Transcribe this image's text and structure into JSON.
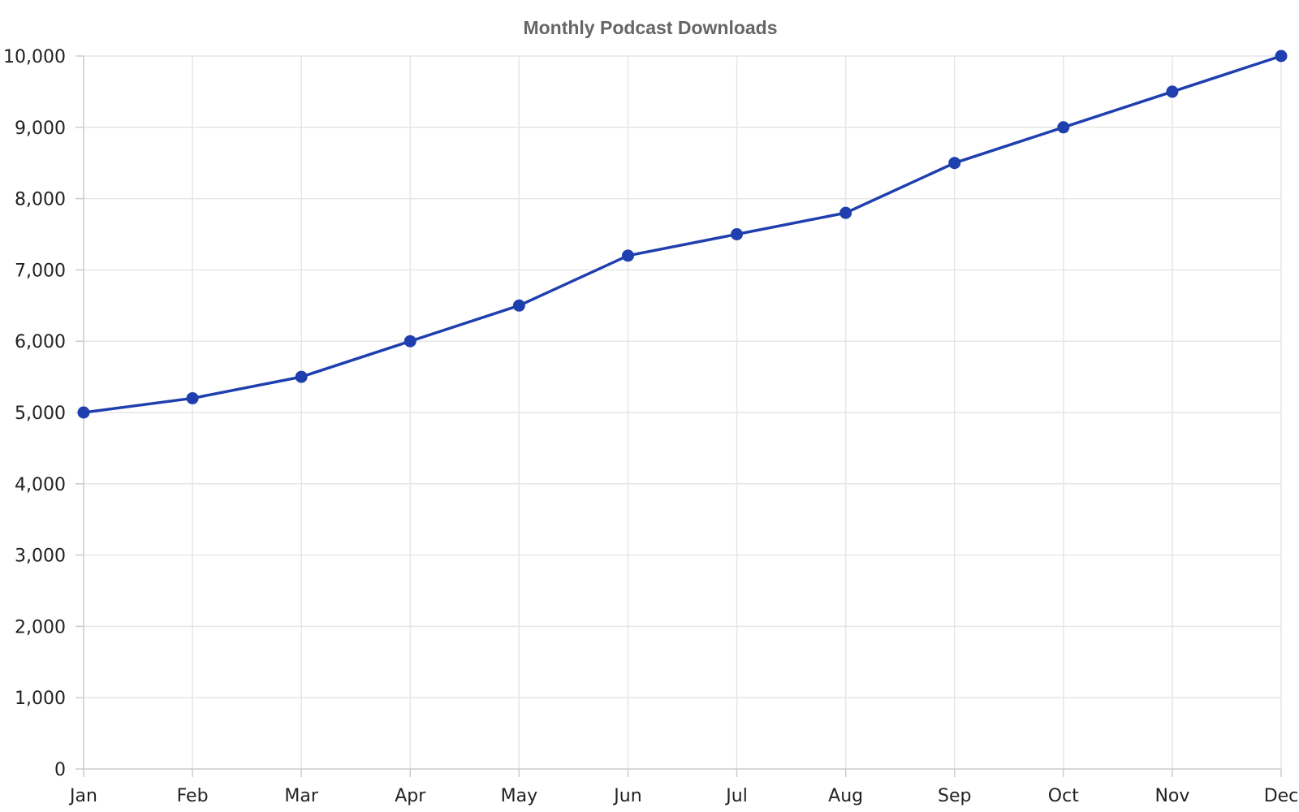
{
  "chart_data": {
    "type": "line",
    "title": "Monthly Podcast Downloads",
    "xlabel": "",
    "ylabel": "",
    "categories": [
      "Jan",
      "Feb",
      "Mar",
      "Apr",
      "May",
      "Jun",
      "Jul",
      "Aug",
      "Sep",
      "Oct",
      "Nov",
      "Dec"
    ],
    "series": [
      {
        "values": [
          5000,
          5200,
          5500,
          6000,
          6500,
          7200,
          7500,
          7800,
          8500,
          9000,
          9500,
          10000
        ]
      }
    ],
    "ylim": [
      0,
      10000
    ],
    "yticks": [
      0,
      1000,
      2000,
      3000,
      4000,
      5000,
      6000,
      7000,
      8000,
      9000,
      10000
    ],
    "ytick_labels": [
      "0",
      "1,000",
      "2,000",
      "3,000",
      "4,000",
      "5,000",
      "6,000",
      "7,000",
      "8,000",
      "9,000",
      "10,000"
    ],
    "grid": true,
    "legend": "none",
    "markers": true,
    "colors": {
      "line": "#1f3fae",
      "marker": "#1f3fae",
      "grid": "#e6e6e6",
      "axis": "#cccccc",
      "title": "#666666",
      "tick_text": "#222222"
    }
  }
}
